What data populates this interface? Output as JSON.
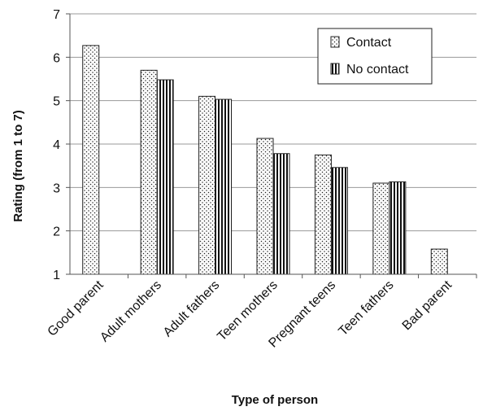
{
  "chart_data": {
    "type": "bar",
    "title": "",
    "xlabel": "Type of person",
    "ylabel": "Rating (from 1 to 7)",
    "ylim": [
      1,
      7
    ],
    "yticks": [
      "1",
      "2",
      "3",
      "4",
      "5",
      "6",
      "7"
    ],
    "grid": true,
    "legend_position": "top-right",
    "categories": [
      "Good parent",
      "Adult mothers",
      "Adult fathers",
      "Teen mothers",
      "Pregnant teens",
      "Teen fathers",
      "Bad parent"
    ],
    "series": [
      {
        "name": "Contact",
        "pattern": "dots",
        "values": [
          6.27,
          5.7,
          5.1,
          4.13,
          3.75,
          3.1,
          1.58
        ]
      },
      {
        "name": "No contact",
        "pattern": "vertical-stripes",
        "values": [
          null,
          5.48,
          5.03,
          3.78,
          3.46,
          3.13,
          null
        ]
      }
    ]
  }
}
